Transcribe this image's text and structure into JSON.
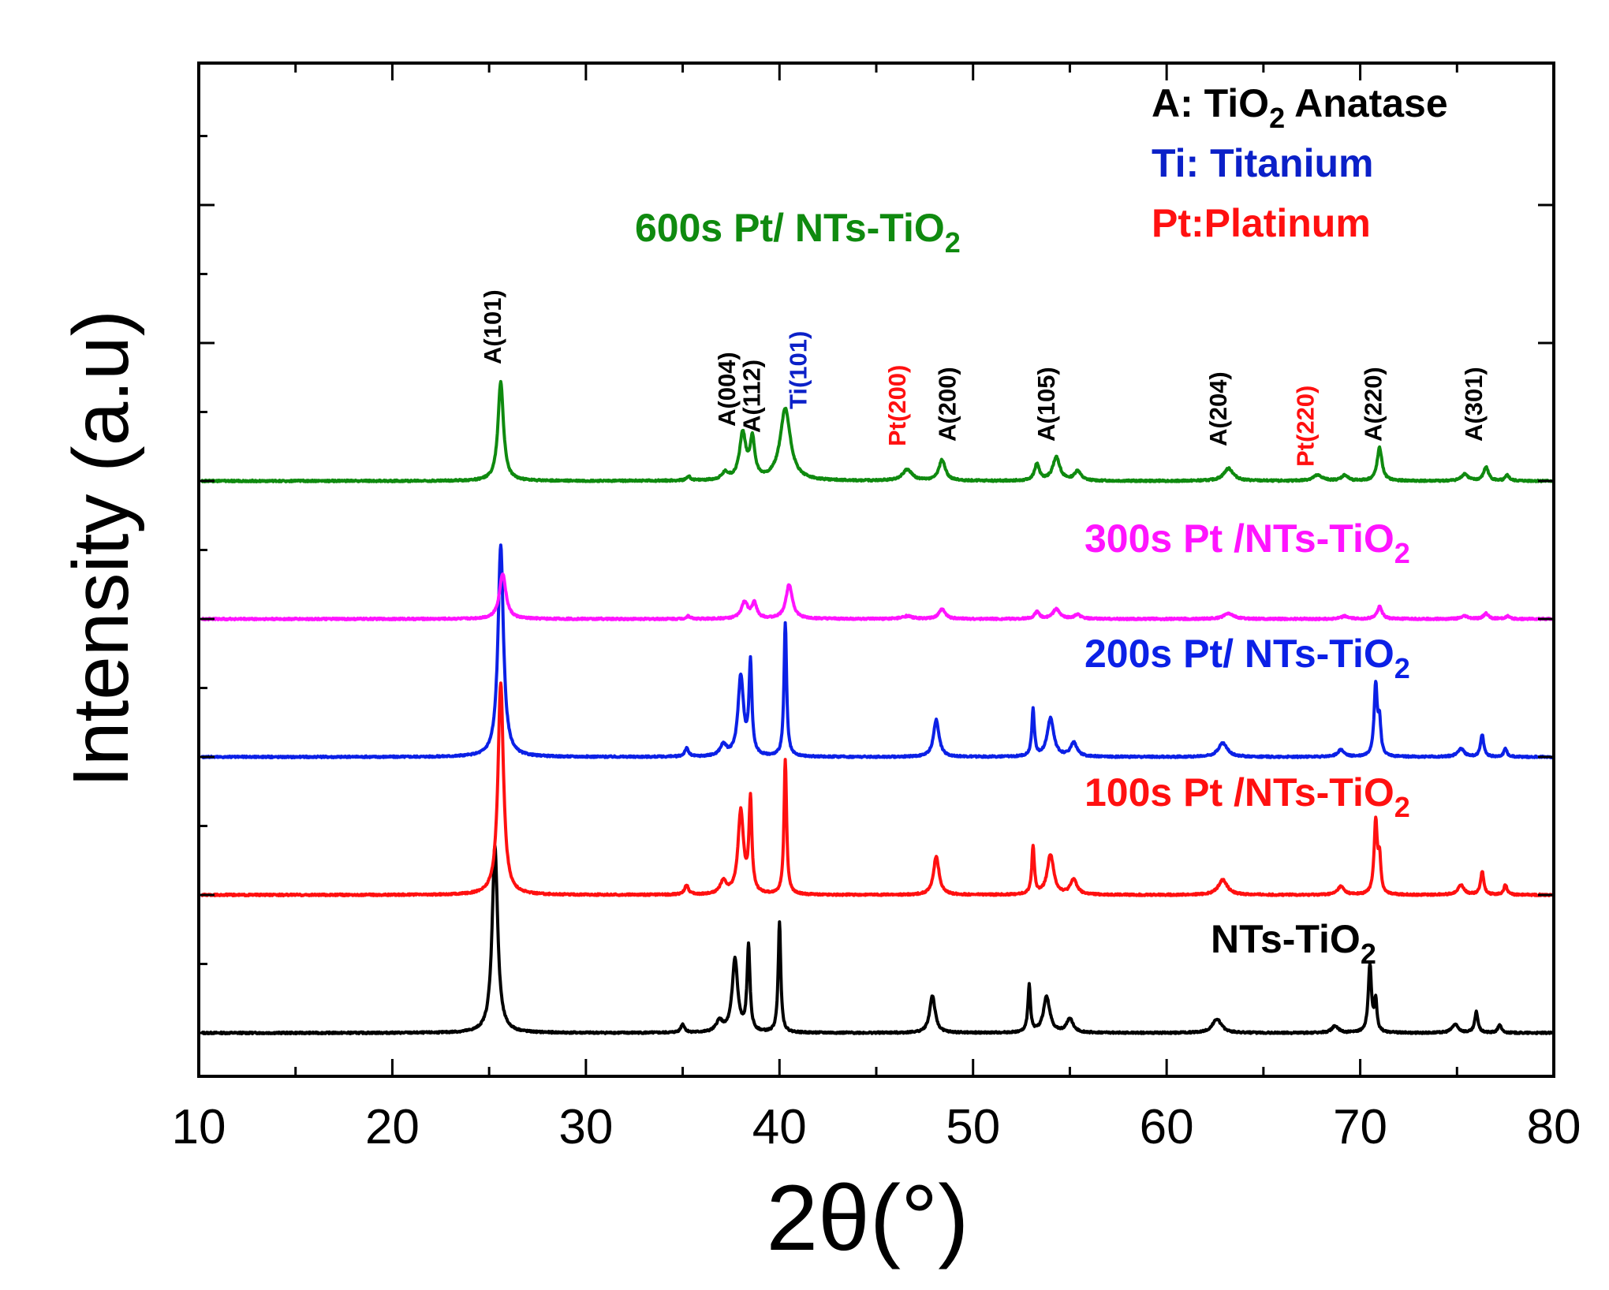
{
  "chart_data": {
    "type": "line",
    "xlabel": "2θ(°)",
    "ylabel": "Intensity (a.u)",
    "xlim": [
      10,
      80
    ],
    "x_ticks": [
      "10",
      "20",
      "30",
      "40",
      "50",
      "60",
      "70",
      "80"
    ],
    "y_tick_labels": "none",
    "grid": false,
    "legend": {
      "placement": "top-right",
      "entries": [
        {
          "prefix": "A: TiO",
          "sub": "2",
          "suffix": " Anatase",
          "color": "#000000"
        },
        {
          "prefix": "Ti: Titanium",
          "sub": "",
          "suffix": "",
          "color": "#0b20c8"
        },
        {
          "prefix": "Pt:Platinum",
          "sub": "",
          "suffix": "",
          "color": "#ff1010"
        }
      ]
    },
    "series": [
      {
        "name": "NTs-TiO2",
        "label_prefix": "NTs-TiO",
        "label_sub": "2",
        "color": "#000000",
        "baseline": 0.0,
        "peaks": [
          {
            "x": 25.3,
            "h": 1.36,
            "w": 0.17
          },
          {
            "x": 35.0,
            "h": 0.06,
            "w": 0.12
          },
          {
            "x": 36.9,
            "h": 0.08,
            "w": 0.2
          },
          {
            "x": 37.7,
            "h": 0.53,
            "w": 0.17
          },
          {
            "x": 38.4,
            "h": 0.62,
            "w": 0.09
          },
          {
            "x": 40.0,
            "h": 0.8,
            "w": 0.08
          },
          {
            "x": 47.9,
            "h": 0.27,
            "w": 0.17
          },
          {
            "x": 52.9,
            "h": 0.34,
            "w": 0.08
          },
          {
            "x": 53.8,
            "h": 0.26,
            "w": 0.2
          },
          {
            "x": 55.0,
            "h": 0.1,
            "w": 0.2
          },
          {
            "x": 62.6,
            "h": 0.1,
            "w": 0.28
          },
          {
            "x": 68.7,
            "h": 0.05,
            "w": 0.2
          },
          {
            "x": 70.5,
            "h": 0.49,
            "w": 0.1
          },
          {
            "x": 70.8,
            "h": 0.22,
            "w": 0.08
          },
          {
            "x": 74.9,
            "h": 0.06,
            "w": 0.2
          },
          {
            "x": 76.0,
            "h": 0.15,
            "w": 0.1
          },
          {
            "x": 77.2,
            "h": 0.06,
            "w": 0.1
          }
        ]
      },
      {
        "name": "100s Pt /NTs-TiO2",
        "label_prefix": "100s Pt /NTs-TiO",
        "label_sub": "2",
        "color": "#ff1010",
        "baseline": 1.0,
        "peaks": [
          {
            "x": 25.6,
            "h": 1.54,
            "w": 0.17
          },
          {
            "x": 35.2,
            "h": 0.07,
            "w": 0.12
          },
          {
            "x": 37.1,
            "h": 0.09,
            "w": 0.2
          },
          {
            "x": 38.0,
            "h": 0.6,
            "w": 0.17
          },
          {
            "x": 38.5,
            "h": 0.67,
            "w": 0.09
          },
          {
            "x": 40.3,
            "h": 0.98,
            "w": 0.08
          },
          {
            "x": 48.1,
            "h": 0.28,
            "w": 0.17
          },
          {
            "x": 53.1,
            "h": 0.35,
            "w": 0.08
          },
          {
            "x": 54.0,
            "h": 0.29,
            "w": 0.2
          },
          {
            "x": 55.2,
            "h": 0.11,
            "w": 0.2
          },
          {
            "x": 62.9,
            "h": 0.11,
            "w": 0.28
          },
          {
            "x": 69.0,
            "h": 0.06,
            "w": 0.2
          },
          {
            "x": 70.8,
            "h": 0.53,
            "w": 0.1
          },
          {
            "x": 71.0,
            "h": 0.24,
            "w": 0.08
          },
          {
            "x": 75.2,
            "h": 0.07,
            "w": 0.2
          },
          {
            "x": 76.3,
            "h": 0.17,
            "w": 0.1
          },
          {
            "x": 77.5,
            "h": 0.07,
            "w": 0.1
          }
        ]
      },
      {
        "name": "200s Pt/ NTs-TiO2",
        "label_prefix": "200s Pt/ NTs-TiO",
        "label_sub": "2",
        "color": "#0b20e6",
        "baseline": 2.0,
        "peaks": [
          {
            "x": 25.6,
            "h": 1.53,
            "w": 0.17
          },
          {
            "x": 35.2,
            "h": 0.06,
            "w": 0.12
          },
          {
            "x": 37.1,
            "h": 0.08,
            "w": 0.2
          },
          {
            "x": 38.0,
            "h": 0.58,
            "w": 0.17
          },
          {
            "x": 38.5,
            "h": 0.66,
            "w": 0.09
          },
          {
            "x": 40.3,
            "h": 0.97,
            "w": 0.08
          },
          {
            "x": 48.1,
            "h": 0.27,
            "w": 0.17
          },
          {
            "x": 53.1,
            "h": 0.34,
            "w": 0.08
          },
          {
            "x": 54.0,
            "h": 0.28,
            "w": 0.2
          },
          {
            "x": 55.2,
            "h": 0.1,
            "w": 0.2
          },
          {
            "x": 62.9,
            "h": 0.1,
            "w": 0.28
          },
          {
            "x": 69.0,
            "h": 0.05,
            "w": 0.2
          },
          {
            "x": 70.8,
            "h": 0.52,
            "w": 0.1
          },
          {
            "x": 71.0,
            "h": 0.23,
            "w": 0.08
          },
          {
            "x": 75.2,
            "h": 0.06,
            "w": 0.2
          },
          {
            "x": 76.3,
            "h": 0.16,
            "w": 0.1
          },
          {
            "x": 77.5,
            "h": 0.06,
            "w": 0.1
          }
        ]
      },
      {
        "name": "300s Pt /NTs-TiO2",
        "label_prefix": "300s Pt /NTs-TiO",
        "label_sub": "2",
        "color": "#ff14ff",
        "baseline": 3.0,
        "peaks": [
          {
            "x": 25.7,
            "h": 0.33,
            "w": 0.2
          },
          {
            "x": 35.3,
            "h": 0.02,
            "w": 0.12
          },
          {
            "x": 38.2,
            "h": 0.12,
            "w": 0.2
          },
          {
            "x": 38.7,
            "h": 0.11,
            "w": 0.15
          },
          {
            "x": 40.5,
            "h": 0.25,
            "w": 0.2
          },
          {
            "x": 46.6,
            "h": 0.02,
            "w": 0.3
          },
          {
            "x": 48.4,
            "h": 0.07,
            "w": 0.2
          },
          {
            "x": 53.3,
            "h": 0.05,
            "w": 0.15
          },
          {
            "x": 54.3,
            "h": 0.07,
            "w": 0.22
          },
          {
            "x": 55.4,
            "h": 0.03,
            "w": 0.2
          },
          {
            "x": 63.2,
            "h": 0.04,
            "w": 0.3
          },
          {
            "x": 69.2,
            "h": 0.02,
            "w": 0.2
          },
          {
            "x": 71.0,
            "h": 0.09,
            "w": 0.15
          },
          {
            "x": 75.4,
            "h": 0.02,
            "w": 0.2
          },
          {
            "x": 76.5,
            "h": 0.04,
            "w": 0.15
          },
          {
            "x": 77.6,
            "h": 0.02,
            "w": 0.12
          }
        ]
      },
      {
        "name": "600s Pt/ NTs-TiO2",
        "label_prefix": "600s Pt/ NTs-TiO",
        "label_sub": "2",
        "color": "#0f8a0f",
        "baseline": 4.0,
        "peaks": [
          {
            "x": 25.6,
            "h": 0.72,
            "w": 0.17
          },
          {
            "x": 35.3,
            "h": 0.03,
            "w": 0.12
          },
          {
            "x": 37.2,
            "h": 0.05,
            "w": 0.2
          },
          {
            "x": 38.1,
            "h": 0.33,
            "w": 0.2
          },
          {
            "x": 38.6,
            "h": 0.28,
            "w": 0.15
          },
          {
            "x": 40.3,
            "h": 0.52,
            "w": 0.32
          },
          {
            "x": 46.6,
            "h": 0.08,
            "w": 0.3
          },
          {
            "x": 48.4,
            "h": 0.15,
            "w": 0.2
          },
          {
            "x": 53.3,
            "h": 0.12,
            "w": 0.15
          },
          {
            "x": 54.3,
            "h": 0.17,
            "w": 0.22
          },
          {
            "x": 55.4,
            "h": 0.07,
            "w": 0.2
          },
          {
            "x": 63.2,
            "h": 0.09,
            "w": 0.3
          },
          {
            "x": 67.8,
            "h": 0.04,
            "w": 0.3
          },
          {
            "x": 69.2,
            "h": 0.04,
            "w": 0.2
          },
          {
            "x": 71.0,
            "h": 0.24,
            "w": 0.15
          },
          {
            "x": 75.4,
            "h": 0.05,
            "w": 0.2
          },
          {
            "x": 76.5,
            "h": 0.1,
            "w": 0.15
          },
          {
            "x": 77.6,
            "h": 0.04,
            "w": 0.12
          }
        ]
      }
    ],
    "peak_labels": [
      {
        "text": "A(101)",
        "x": 25.6,
        "color": "#000000"
      },
      {
        "text": "A(004)",
        "x": 37.7,
        "color": "#000000"
      },
      {
        "text": "A(112)",
        "x": 39.0,
        "color": "#000000"
      },
      {
        "text": "Ti(101)",
        "x": 41.4,
        "color": "#0b20c8"
      },
      {
        "text": "Pt(200)",
        "x": 46.5,
        "color": "#ff1010"
      },
      {
        "text": "A(200)",
        "x": 49.1,
        "color": "#000000"
      },
      {
        "text": "A(105)",
        "x": 54.2,
        "color": "#000000"
      },
      {
        "text": "A(204)",
        "x": 63.1,
        "color": "#000000"
      },
      {
        "text": "Pt(220)",
        "x": 67.6,
        "color": "#ff1010"
      },
      {
        "text": "A(220)",
        "x": 71.1,
        "color": "#000000"
      },
      {
        "text": "A(301)",
        "x": 76.3,
        "color": "#000000"
      }
    ]
  }
}
